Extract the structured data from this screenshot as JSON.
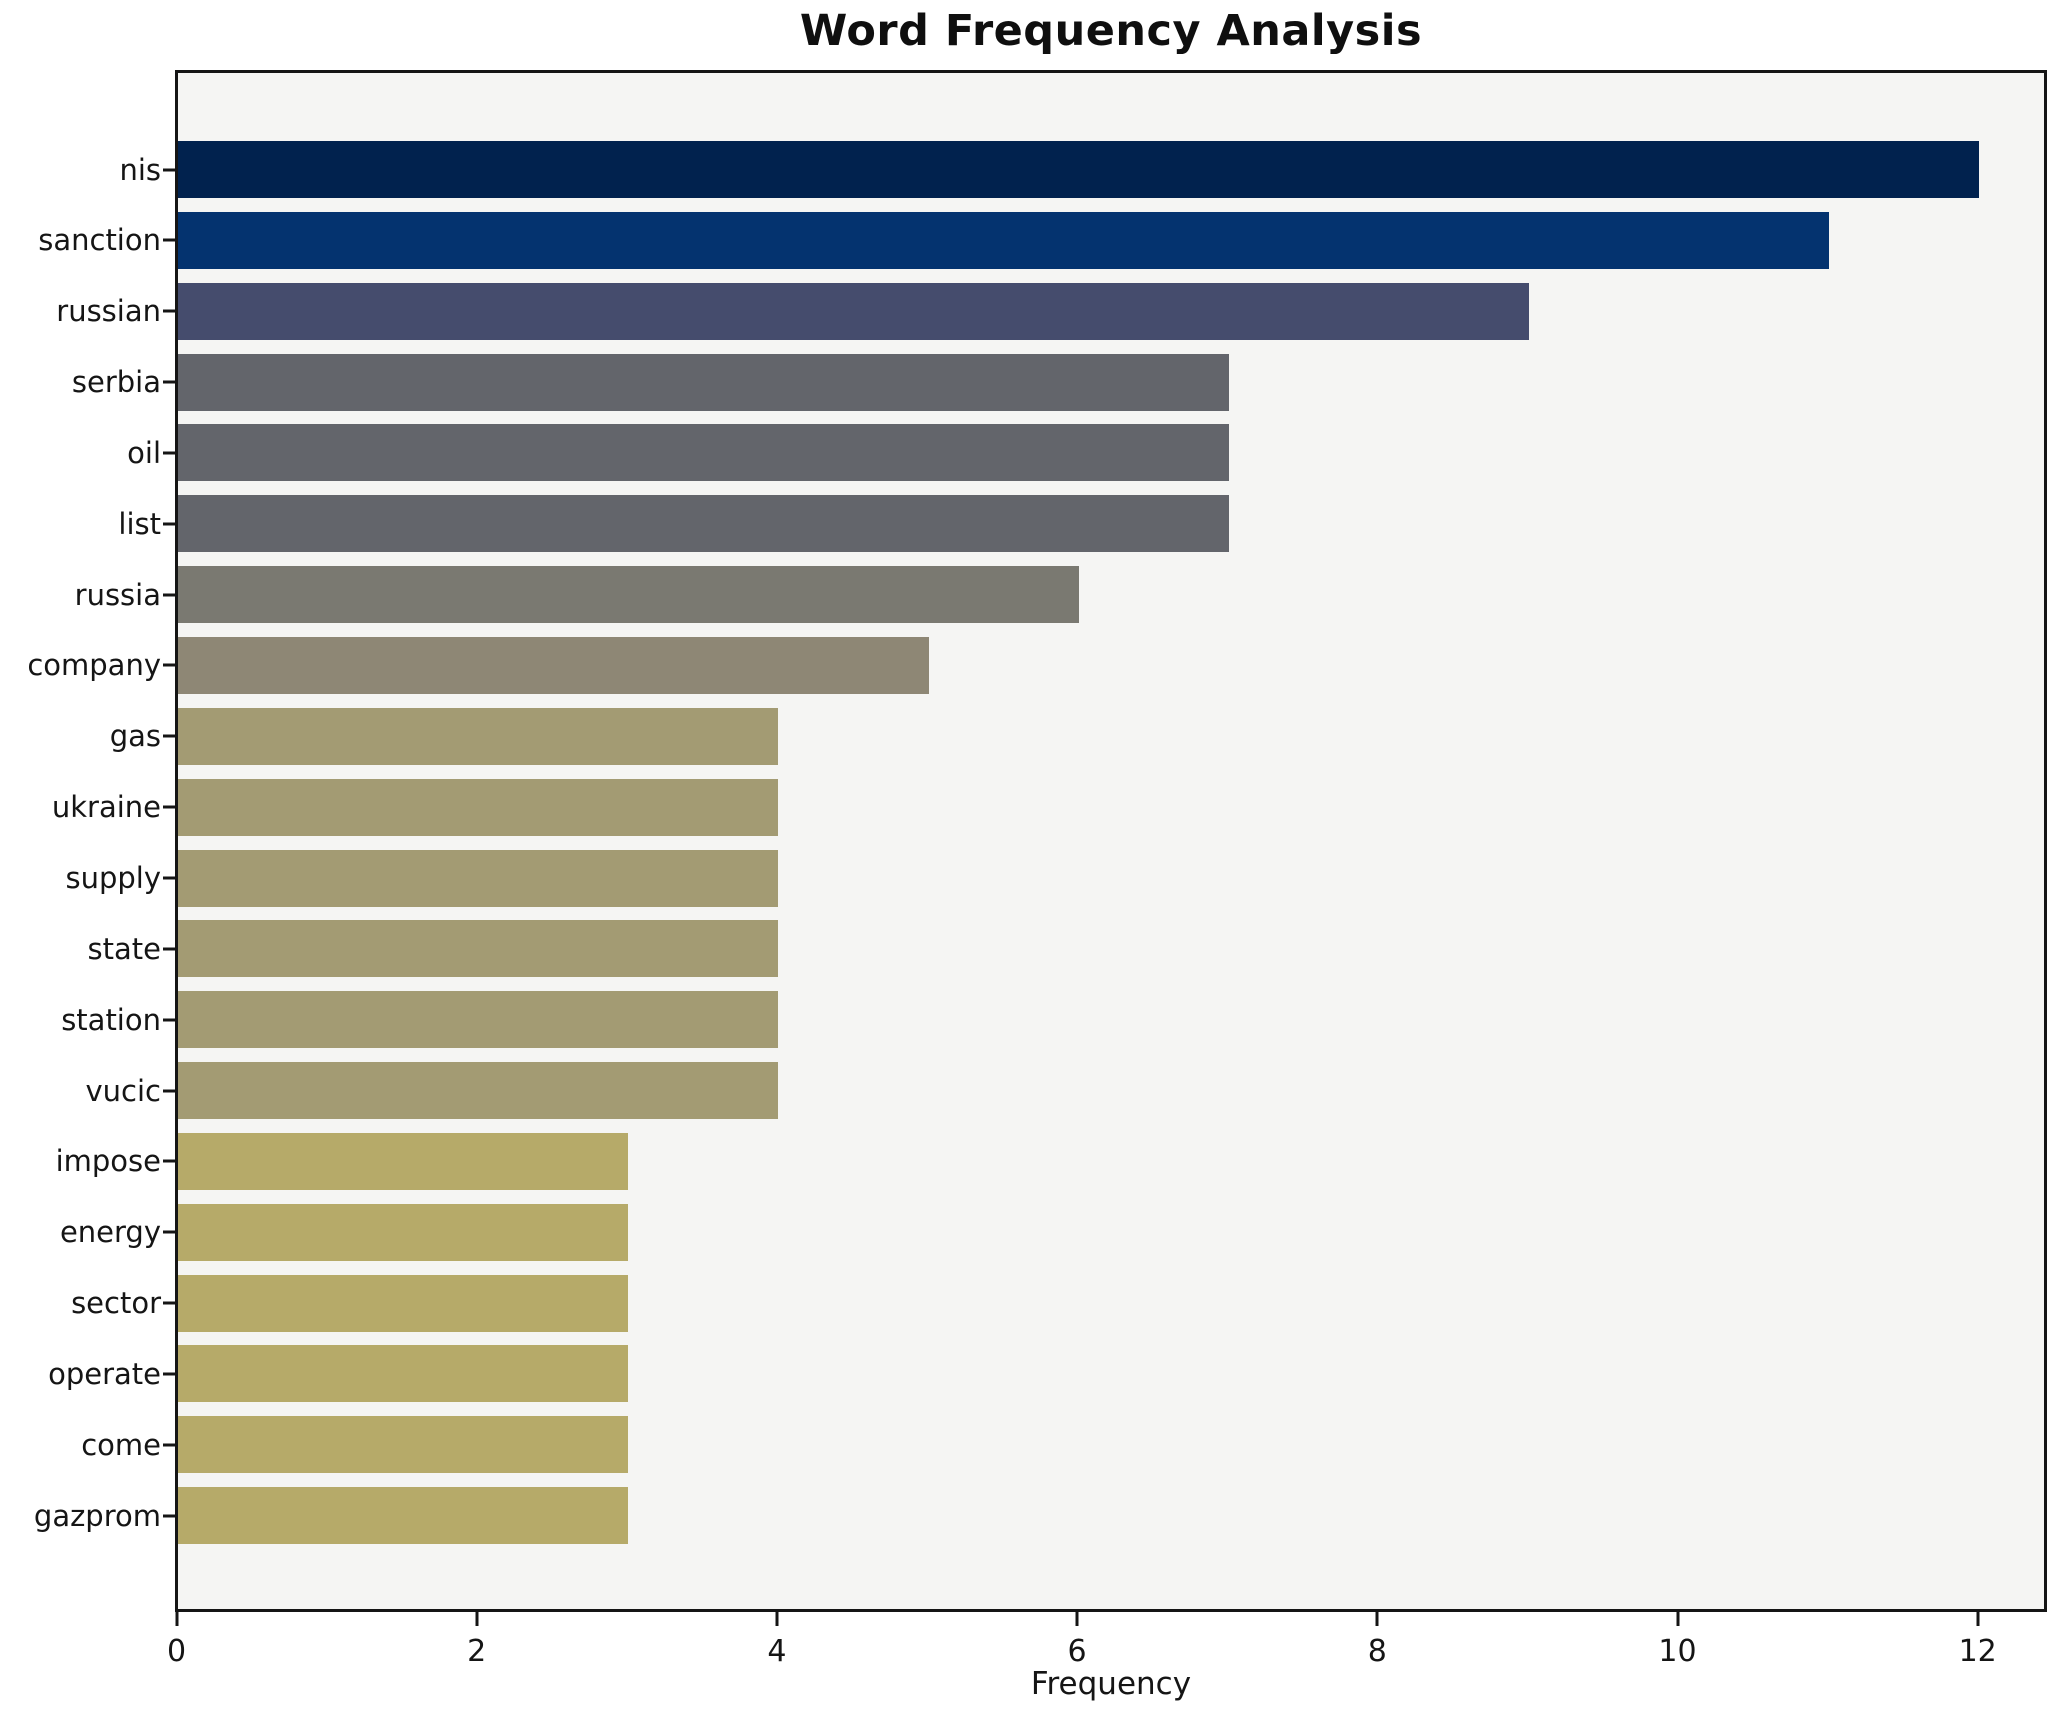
{
  "title": "Word Frequency Analysis",
  "chart_data": {
    "type": "bar",
    "orientation": "horizontal",
    "title": "Word Frequency Analysis",
    "xlabel": "Frequency",
    "ylabel": "",
    "categories": [
      "nis",
      "sanction",
      "russian",
      "serbia",
      "oil",
      "list",
      "russia",
      "company",
      "gas",
      "ukraine",
      "supply",
      "state",
      "station",
      "vucic",
      "impose",
      "energy",
      "sector",
      "operate",
      "come",
      "gazprom"
    ],
    "values": [
      12,
      11,
      9,
      7,
      7,
      7,
      6,
      5,
      4,
      4,
      4,
      4,
      4,
      4,
      3,
      3,
      3,
      3,
      3,
      3
    ],
    "bar_colors": [
      "#01224e",
      "#04336f",
      "#454c6d",
      "#63656b",
      "#63656b",
      "#63656b",
      "#7a7971",
      "#8e8775",
      "#a39b73",
      "#a39b73",
      "#a39b73",
      "#a39b73",
      "#a39b73",
      "#a39b73",
      "#b6aa69",
      "#b6aa69",
      "#b6aa69",
      "#b6aa69",
      "#b6aa69",
      "#b6aa69"
    ],
    "xticks": [
      "0",
      "2",
      "4",
      "6",
      "8",
      "10",
      "12"
    ],
    "xtick_values": [
      0,
      2,
      4,
      6,
      8,
      10,
      12
    ],
    "xlim": [
      0,
      12.45
    ],
    "grid": false,
    "legend": "none",
    "plot_background": "#f5f5f3",
    "spine_color": "#151515",
    "text_color": "#151515"
  }
}
